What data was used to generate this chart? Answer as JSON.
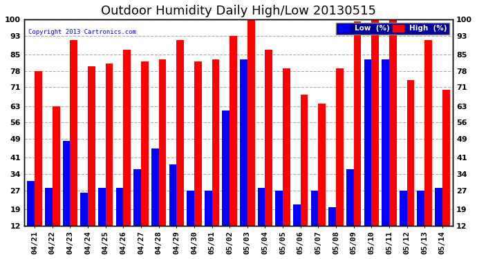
{
  "title": "Outdoor Humidity Daily High/Low 20130515",
  "copyright": "Copyright 2013 Cartronics.com",
  "categories": [
    "04/21",
    "04/22",
    "04/23",
    "04/24",
    "04/25",
    "04/26",
    "04/27",
    "04/28",
    "04/29",
    "04/30",
    "05/01",
    "05/02",
    "05/03",
    "05/04",
    "05/05",
    "05/06",
    "05/07",
    "05/08",
    "05/09",
    "05/10",
    "05/11",
    "05/12",
    "05/13",
    "05/14"
  ],
  "high": [
    78,
    63,
    91,
    80,
    81,
    87,
    82,
    83,
    91,
    82,
    83,
    93,
    100,
    87,
    79,
    68,
    64,
    79,
    99,
    100,
    100,
    74,
    91,
    70
  ],
  "low": [
    31,
    28,
    48,
    26,
    28,
    28,
    36,
    45,
    38,
    27,
    27,
    61,
    83,
    28,
    27,
    21,
    27,
    20,
    36,
    83,
    83,
    27,
    27,
    28
  ],
  "high_color": "#ff0000",
  "low_color": "#0000ff",
  "bg_color": "#ffffff",
  "plot_bg_color": "#ffffff",
  "grid_color": "#aaaaaa",
  "ylim_min": 12,
  "ylim_max": 100,
  "yticks": [
    12,
    19,
    27,
    34,
    41,
    49,
    56,
    63,
    71,
    78,
    85,
    93,
    100
  ],
  "title_fontsize": 13,
  "tick_fontsize": 8,
  "bar_width": 0.42,
  "baseline": 12,
  "legend_low_label": "Low  (%)",
  "legend_high_label": "High  (%)"
}
